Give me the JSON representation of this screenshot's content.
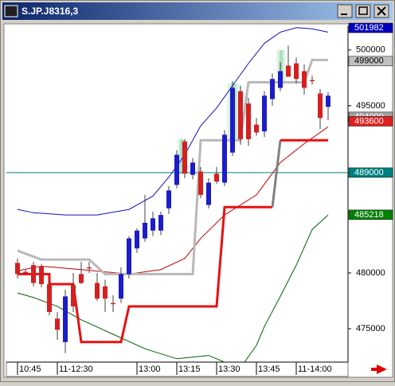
{
  "chart_data": {
    "type": "candlestick",
    "title": "S.JP.J8316,3",
    "xlim": [
      -1.4,
      41.5
    ],
    "ylim": [
      472000,
      502200
    ],
    "xticks": [
      {
        "value": 0,
        "label": "10:45"
      },
      {
        "value": 5,
        "label": "11-12:30"
      },
      {
        "value": 15,
        "label": "13:00"
      },
      {
        "value": 20,
        "label": "13:15"
      },
      {
        "value": 25,
        "label": "13:30"
      },
      {
        "value": 30,
        "label": "13:45"
      },
      {
        "value": 35,
        "label": "11-14:00"
      }
    ],
    "yticks": [
      475000,
      480000,
      495000,
      500000
    ],
    "up_color": "#1c1cc8",
    "down_color": "#d42020",
    "open": [
      480900,
      480100,
      480700,
      480600,
      479000,
      475900,
      473800,
      478900,
      479900,
      480500,
      479100,
      478800,
      477300,
      477700,
      479900,
      482200,
      483100,
      483800,
      483800,
      485800,
      487900,
      491800,
      488800,
      489100,
      486100,
      488900,
      488100,
      490800,
      496300,
      495200,
      493300,
      492700,
      495600,
      496600,
      498600,
      498800,
      498100,
      497300,
      496100,
      494900
    ],
    "high": [
      481300,
      480300,
      481000,
      480800,
      479200,
      476500,
      478500,
      480000,
      481000,
      481000,
      480000,
      479400,
      478000,
      480500,
      483300,
      484000,
      487000,
      485500,
      485500,
      487800,
      491000,
      492000,
      490300,
      489500,
      488500,
      489500,
      492800,
      497200,
      496800,
      495700,
      493900,
      496300,
      497900,
      498900,
      500400,
      499300,
      498700,
      497700,
      496500,
      496200
    ],
    "low": [
      479500,
      479800,
      478800,
      478700,
      476200,
      474000,
      472800,
      476500,
      479000,
      480000,
      477500,
      476500,
      476500,
      477300,
      479500,
      481800,
      482800,
      483300,
      483400,
      485300,
      487600,
      488500,
      488400,
      486700,
      485800,
      488000,
      487800,
      490500,
      491500,
      491400,
      492300,
      492200,
      495000,
      496300,
      497900,
      497000,
      496000,
      496900,
      492900,
      493700
    ],
    "close": [
      479900,
      480000,
      479100,
      479000,
      476500,
      474900,
      477900,
      477000,
      479100,
      480400,
      477700,
      477700,
      477200,
      479900,
      483100,
      483800,
      484500,
      484900,
      485200,
      487400,
      490600,
      488900,
      489900,
      487000,
      488100,
      488200,
      492400,
      496600,
      492000,
      492000,
      492600,
      495900,
      497400,
      498100,
      497600,
      497400,
      496600,
      497200,
      493900,
      495900
    ],
    "lines": [
      {
        "color": "#1010c0",
        "width": 1,
        "x": [
          0,
          2,
          6,
          10,
          14,
          17,
          19,
          21,
          23,
          25,
          27,
          29,
          31,
          33,
          35,
          37,
          39
        ],
        "values": [
          485700,
          485400,
          485200,
          485200,
          485700,
          486900,
          488600,
          490600,
          493200,
          494800,
          496800,
          498800,
          500600,
          501600,
          502000,
          501900,
          501600
        ]
      },
      {
        "color": "#006400",
        "width": 1,
        "x": [
          0,
          2,
          5,
          8,
          12,
          16,
          20,
          24,
          26,
          28,
          30,
          31,
          33,
          35,
          37,
          39
        ],
        "values": [
          478200,
          477800,
          477000,
          475800,
          474500,
          473200,
          472300,
          472600,
          472000,
          471500,
          473500,
          475200,
          477900,
          480700,
          483900,
          485200
        ]
      },
      {
        "color": "#c00000",
        "width": 1,
        "x": [
          0,
          3,
          8,
          14,
          18,
          21,
          23,
          26,
          30,
          33,
          36,
          39
        ],
        "values": [
          480200,
          480600,
          480300,
          479900,
          480300,
          481300,
          483100,
          485200,
          487000,
          489900,
          491600,
          493100
        ]
      },
      {
        "color": "#b8b8b8",
        "width": 3,
        "x": [
          0,
          3,
          9,
          11,
          22,
          23,
          28,
          29,
          36,
          37,
          39
        ],
        "values": [
          482000,
          481200,
          481200,
          479900,
          479900,
          491900,
          491900,
          497100,
          497100,
          499100,
          499100
        ]
      },
      {
        "color": "#e81010",
        "width": 3,
        "x": [
          0,
          4,
          4,
          7,
          8,
          13,
          14,
          25,
          26,
          32
        ],
        "values": [
          479900,
          479900,
          479000,
          479000,
          473800,
          473800,
          477000,
          477000,
          485900,
          485900
        ]
      },
      {
        "color": "#808080",
        "width": 3,
        "x": [
          32,
          33
        ],
        "values": [
          485900,
          491900
        ]
      },
      {
        "color": "#e81010",
        "width": 3,
        "x": [
          33,
          39
        ],
        "values": [
          491900,
          491900
        ]
      }
    ],
    "price_labels": [
      {
        "value": 501982,
        "color": "#0000c0"
      },
      {
        "value": 499000,
        "color": "#c0c0c0"
      },
      {
        "value": 494000,
        "color": "#a0a0a0"
      },
      {
        "value": 493600,
        "color": "#e02020"
      },
      {
        "value": 489000,
        "color": "#008080",
        "line": true
      },
      {
        "value": 485218,
        "color": "#008000"
      }
    ]
  }
}
